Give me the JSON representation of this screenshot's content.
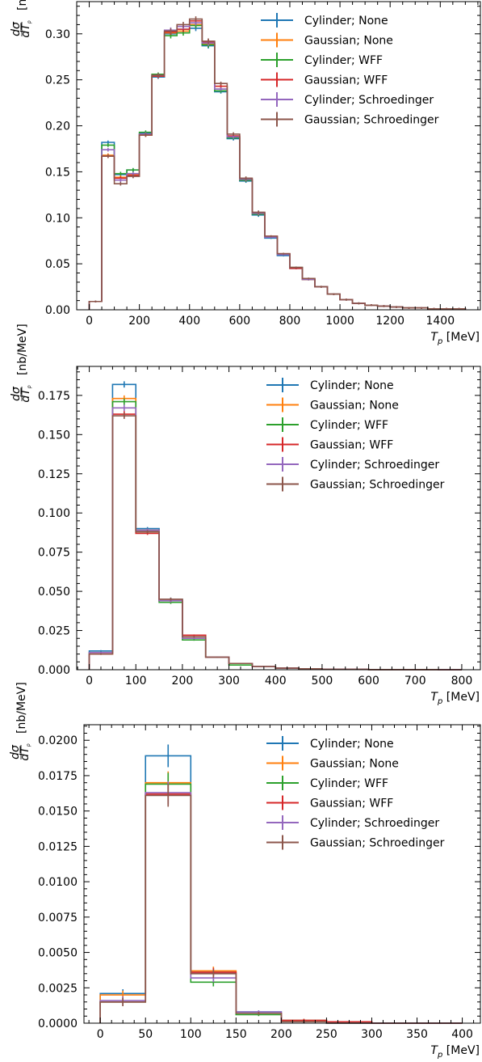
{
  "colors": {
    "Cylinder; None": "#1f77b4",
    "Gaussian; None": "#ff7f0e",
    "Cylinder; WFF": "#2ca02c",
    "Gaussian; WFF": "#d62728",
    "Cylinder; Schroedinger": "#9467bd",
    "Gaussian; Schroedinger": "#8c564b"
  },
  "legend": [
    "Cylinder; None",
    "Gaussian; None",
    "Cylinder; WFF",
    "Gaussian; WFF",
    "Cylinder; Schroedinger",
    "Gaussian; Schroedinger"
  ],
  "chart_data": [
    {
      "type": "histogram",
      "xlabel": "T_p [MeV]",
      "ylabel": "dσ/dT_p [nb/MeV]",
      "xlim": [
        -50,
        1560
      ],
      "ylim": [
        0,
        0.335
      ],
      "xticks": [
        0,
        200,
        400,
        600,
        800,
        1000,
        1200,
        1400
      ],
      "xtick_labels": [
        "0",
        "200",
        "400",
        "600",
        "800",
        "1000",
        "1200",
        "1400"
      ],
      "yticks": [
        0,
        0.05,
        0.1,
        0.15,
        0.2,
        0.25,
        0.3
      ],
      "ytick_labels": [
        "0.00",
        "0.05",
        "0.10",
        "0.15",
        "0.20",
        "0.25",
        "0.30"
      ],
      "bin_edges": [
        0,
        50,
        100,
        150,
        200,
        250,
        300,
        350,
        400,
        450,
        500,
        550,
        600,
        650,
        700,
        750,
        800,
        850,
        900,
        950,
        1000,
        1050,
        1100,
        1150,
        1200,
        1250,
        1300,
        1350,
        1400,
        1450,
        1500
      ],
      "series": [
        {
          "name": "Cylinder; None",
          "values": [
            0.009,
            0.182,
            0.147,
            0.152,
            0.192,
            0.253,
            0.3,
            0.305,
            0.306,
            0.287,
            0.237,
            0.186,
            0.14,
            0.103,
            0.078,
            0.059,
            0.045,
            0.033,
            0.025,
            0.017,
            0.011,
            0.007,
            0.005,
            0.004,
            0.003,
            0.002,
            0.002,
            0.001,
            0.001,
            0.001
          ],
          "errors": [
            0.001,
            0.002,
            0.002,
            0.002,
            0.002,
            0.002,
            0.003,
            0.003,
            0.003,
            0.003,
            0.002,
            0.002,
            0.002,
            0.002,
            0.001,
            0.001,
            0.001,
            0.001,
            0.001,
            0.001,
            0.001,
            0.001,
            0.001,
            0.001,
            0.001,
            0.001,
            0.001,
            0.001,
            0.001,
            0.001
          ]
        },
        {
          "name": "Gaussian; None",
          "values": [
            0.009,
            0.168,
            0.144,
            0.147,
            0.19,
            0.254,
            0.301,
            0.303,
            0.31,
            0.289,
            0.243,
            0.188,
            0.141,
            0.104,
            0.079,
            0.06,
            0.046,
            0.033,
            0.025,
            0.017,
            0.011,
            0.007,
            0.005,
            0.004,
            0.003,
            0.002,
            0.002,
            0.001,
            0.001,
            0.001
          ],
          "errors": [
            0.001,
            0.002,
            0.002,
            0.002,
            0.002,
            0.002,
            0.003,
            0.003,
            0.003,
            0.003,
            0.002,
            0.002,
            0.002,
            0.002,
            0.001,
            0.001,
            0.001,
            0.001,
            0.001,
            0.001,
            0.001,
            0.001,
            0.001,
            0.001,
            0.001,
            0.001,
            0.001,
            0.001,
            0.001,
            0.001
          ]
        },
        {
          "name": "Cylinder; WFF",
          "values": [
            0.009,
            0.179,
            0.148,
            0.152,
            0.193,
            0.256,
            0.298,
            0.301,
            0.309,
            0.288,
            0.238,
            0.187,
            0.141,
            0.104,
            0.079,
            0.06,
            0.046,
            0.033,
            0.025,
            0.017,
            0.011,
            0.007,
            0.005,
            0.004,
            0.003,
            0.002,
            0.002,
            0.001,
            0.001,
            0.001
          ],
          "errors": [
            0.001,
            0.002,
            0.002,
            0.002,
            0.002,
            0.002,
            0.003,
            0.003,
            0.003,
            0.003,
            0.002,
            0.002,
            0.002,
            0.002,
            0.001,
            0.001,
            0.001,
            0.001,
            0.001,
            0.001,
            0.001,
            0.001,
            0.001,
            0.001,
            0.001,
            0.001,
            0.001,
            0.001,
            0.001,
            0.001
          ]
        },
        {
          "name": "Gaussian; WFF",
          "values": [
            0.009,
            0.167,
            0.143,
            0.146,
            0.19,
            0.254,
            0.302,
            0.305,
            0.314,
            0.291,
            0.243,
            0.189,
            0.142,
            0.105,
            0.08,
            0.061,
            0.045,
            0.033,
            0.025,
            0.017,
            0.011,
            0.007,
            0.005,
            0.004,
            0.003,
            0.002,
            0.002,
            0.001,
            0.001,
            0.001
          ],
          "errors": [
            0.001,
            0.002,
            0.002,
            0.002,
            0.002,
            0.002,
            0.003,
            0.003,
            0.003,
            0.003,
            0.002,
            0.002,
            0.002,
            0.002,
            0.001,
            0.001,
            0.001,
            0.001,
            0.001,
            0.001,
            0.001,
            0.001,
            0.001,
            0.001,
            0.001,
            0.001,
            0.001,
            0.001,
            0.001,
            0.001
          ]
        },
        {
          "name": "Cylinder; Schroedinger",
          "values": [
            0.009,
            0.174,
            0.141,
            0.148,
            0.191,
            0.255,
            0.304,
            0.308,
            0.312,
            0.29,
            0.24,
            0.188,
            0.142,
            0.105,
            0.079,
            0.06,
            0.046,
            0.033,
            0.025,
            0.017,
            0.011,
            0.007,
            0.005,
            0.004,
            0.003,
            0.002,
            0.002,
            0.001,
            0.001,
            0.001
          ],
          "errors": [
            0.001,
            0.002,
            0.002,
            0.002,
            0.002,
            0.002,
            0.003,
            0.003,
            0.003,
            0.003,
            0.002,
            0.002,
            0.002,
            0.002,
            0.001,
            0.001,
            0.001,
            0.001,
            0.001,
            0.001,
            0.001,
            0.001,
            0.001,
            0.001,
            0.001,
            0.001,
            0.001,
            0.001,
            0.001,
            0.001
          ]
        },
        {
          "name": "Gaussian; Schroedinger",
          "values": [
            0.009,
            0.167,
            0.137,
            0.145,
            0.19,
            0.255,
            0.303,
            0.31,
            0.316,
            0.292,
            0.246,
            0.191,
            0.143,
            0.106,
            0.08,
            0.061,
            0.046,
            0.034,
            0.025,
            0.017,
            0.011,
            0.007,
            0.005,
            0.004,
            0.003,
            0.002,
            0.002,
            0.001,
            0.001,
            0.001
          ],
          "errors": [
            0.001,
            0.002,
            0.002,
            0.002,
            0.002,
            0.002,
            0.003,
            0.003,
            0.003,
            0.003,
            0.002,
            0.002,
            0.002,
            0.002,
            0.001,
            0.001,
            0.001,
            0.001,
            0.001,
            0.001,
            0.001,
            0.001,
            0.001,
            0.001,
            0.001,
            0.001,
            0.001,
            0.001,
            0.001,
            0.001
          ]
        }
      ]
    },
    {
      "type": "histogram",
      "xlabel": "T_p [MeV]",
      "ylabel": "dσ/dT_p [nb/MeV]",
      "xlim": [
        -27,
        840
      ],
      "ylim": [
        0,
        0.1935
      ],
      "xticks": [
        0,
        100,
        200,
        300,
        400,
        500,
        600,
        700,
        800
      ],
      "xtick_labels": [
        "0",
        "100",
        "200",
        "300",
        "400",
        "500",
        "600",
        "700",
        "800"
      ],
      "yticks": [
        0,
        0.025,
        0.05,
        0.075,
        0.1,
        0.125,
        0.15,
        0.175
      ],
      "ytick_labels": [
        "0.000",
        "0.025",
        "0.050",
        "0.075",
        "0.100",
        "0.125",
        "0.150",
        "0.175"
      ],
      "bin_edges": [
        0,
        50,
        100,
        150,
        200,
        250,
        300,
        350,
        400,
        450,
        500,
        550,
        600,
        650,
        700,
        750,
        800
      ],
      "series": [
        {
          "name": "Cylinder; None",
          "values": [
            0.012,
            0.182,
            0.09,
            0.045,
            0.02,
            0.008,
            0.004,
            0.002,
            0.001,
            0.0006,
            0.0003,
            0.0002,
            0.0001,
            0.0001,
            0.0001,
            0.0
          ],
          "errors": [
            0.0005,
            0.002,
            0.001,
            0.001,
            0.0005,
            0.0003,
            0.0002,
            0.0001,
            0.0001,
            0.0001,
            0.0001,
            0.0,
            0.0,
            0.0,
            0.0,
            0.0
          ]
        },
        {
          "name": "Gaussian; None",
          "values": [
            0.01,
            0.173,
            0.089,
            0.044,
            0.021,
            0.008,
            0.004,
            0.002,
            0.001,
            0.0006,
            0.0003,
            0.0002,
            0.0001,
            0.0001,
            0.0001,
            0.0
          ],
          "errors": [
            0.0005,
            0.002,
            0.001,
            0.001,
            0.0005,
            0.0003,
            0.0002,
            0.0001,
            0.0001,
            0.0001,
            0.0001,
            0.0,
            0.0,
            0.0,
            0.0,
            0.0
          ]
        },
        {
          "name": "Cylinder; WFF",
          "values": [
            0.011,
            0.171,
            0.088,
            0.043,
            0.019,
            0.008,
            0.003,
            0.002,
            0.001,
            0.0006,
            0.0003,
            0.0002,
            0.0001,
            0.0001,
            0.0001,
            0.0
          ],
          "errors": [
            0.0005,
            0.002,
            0.001,
            0.001,
            0.0005,
            0.0003,
            0.0002,
            0.0001,
            0.0001,
            0.0001,
            0.0001,
            0.0,
            0.0,
            0.0,
            0.0,
            0.0
          ]
        },
        {
          "name": "Gaussian; WFF",
          "values": [
            0.01,
            0.163,
            0.087,
            0.044,
            0.022,
            0.008,
            0.004,
            0.002,
            0.001,
            0.0006,
            0.0003,
            0.0002,
            0.0001,
            0.0001,
            0.0001,
            0.0
          ],
          "errors": [
            0.0005,
            0.002,
            0.001,
            0.001,
            0.0005,
            0.0003,
            0.0002,
            0.0001,
            0.0001,
            0.0001,
            0.0001,
            0.0,
            0.0,
            0.0,
            0.0,
            0.0
          ]
        },
        {
          "name": "Cylinder; Schroedinger",
          "values": [
            0.011,
            0.167,
            0.089,
            0.044,
            0.02,
            0.008,
            0.004,
            0.002,
            0.001,
            0.0006,
            0.0003,
            0.0002,
            0.0001,
            0.0001,
            0.0001,
            0.0
          ],
          "errors": [
            0.0005,
            0.002,
            0.001,
            0.001,
            0.0005,
            0.0003,
            0.0002,
            0.0001,
            0.0001,
            0.0001,
            0.0001,
            0.0,
            0.0,
            0.0,
            0.0,
            0.0
          ]
        },
        {
          "name": "Gaussian; Schroedinger",
          "values": [
            0.01,
            0.162,
            0.088,
            0.045,
            0.021,
            0.008,
            0.004,
            0.002,
            0.001,
            0.0006,
            0.0003,
            0.0002,
            0.0001,
            0.0001,
            0.0001,
            0.0
          ],
          "errors": [
            0.0005,
            0.002,
            0.001,
            0.001,
            0.0005,
            0.0003,
            0.0002,
            0.0001,
            0.0001,
            0.0001,
            0.0001,
            0.0,
            0.0,
            0.0,
            0.0,
            0.0
          ]
        }
      ]
    },
    {
      "type": "histogram",
      "xlabel": "T_p [MeV]",
      "ylabel": "dσ/dT_p [nb/MeV]",
      "xlim": [
        -18,
        420
      ],
      "ylim": [
        0,
        0.0211
      ],
      "xticks": [
        0,
        50,
        100,
        150,
        200,
        250,
        300,
        350,
        400
      ],
      "xtick_labels": [
        "0",
        "50",
        "100",
        "150",
        "200",
        "250",
        "300",
        "350",
        "400"
      ],
      "yticks": [
        0,
        0.0025,
        0.005,
        0.0075,
        0.01,
        0.0125,
        0.015,
        0.0175,
        0.02
      ],
      "ytick_labels": [
        "0.0000",
        "0.0025",
        "0.0050",
        "0.0075",
        "0.0100",
        "0.0125",
        "0.0150",
        "0.0175",
        "0.0200"
      ],
      "bin_edges": [
        0,
        50,
        100,
        150,
        200,
        250,
        300,
        350,
        400
      ],
      "series": [
        {
          "name": "Cylinder; None",
          "values": [
            0.0021,
            0.0189,
            0.0036,
            0.0008,
            0.0002,
            0.0001,
            0.0,
            0.0
          ],
          "errors": [
            0.0003,
            0.0008,
            0.0003,
            0.0001,
            0.0001,
            0.0,
            0.0,
            0.0
          ]
        },
        {
          "name": "Gaussian; None",
          "values": [
            0.002,
            0.017,
            0.0037,
            0.0007,
            0.0002,
            0.0001,
            0.0,
            0.0
          ],
          "errors": [
            0.0003,
            0.0008,
            0.0003,
            0.0001,
            0.0001,
            0.0,
            0.0,
            0.0
          ]
        },
        {
          "name": "Cylinder; WFF",
          "values": [
            0.0015,
            0.0169,
            0.0029,
            0.0006,
            0.0001,
            0.0,
            0.0,
            0.0
          ],
          "errors": [
            0.0003,
            0.0008,
            0.0003,
            0.0001,
            0.0001,
            0.0,
            0.0,
            0.0
          ]
        },
        {
          "name": "Gaussian; WFF",
          "values": [
            0.0015,
            0.0162,
            0.0036,
            0.0007,
            0.0002,
            0.0001,
            0.0,
            0.0
          ],
          "errors": [
            0.0003,
            0.0008,
            0.0003,
            0.0001,
            0.0001,
            0.0,
            0.0,
            0.0
          ]
        },
        {
          "name": "Cylinder; Schroedinger",
          "values": [
            0.0016,
            0.0163,
            0.0032,
            0.0008,
            0.0001,
            0.0,
            0.0,
            0.0
          ],
          "errors": [
            0.0003,
            0.0008,
            0.0003,
            0.0001,
            0.0001,
            0.0,
            0.0,
            0.0
          ]
        },
        {
          "name": "Gaussian; Schroedinger",
          "values": [
            0.0015,
            0.0161,
            0.0035,
            0.0007,
            0.0001,
            0.0,
            0.0,
            0.0
          ],
          "errors": [
            0.0003,
            0.0008,
            0.0003,
            0.0001,
            0.0001,
            0.0,
            0.0,
            0.0
          ]
        }
      ]
    }
  ]
}
